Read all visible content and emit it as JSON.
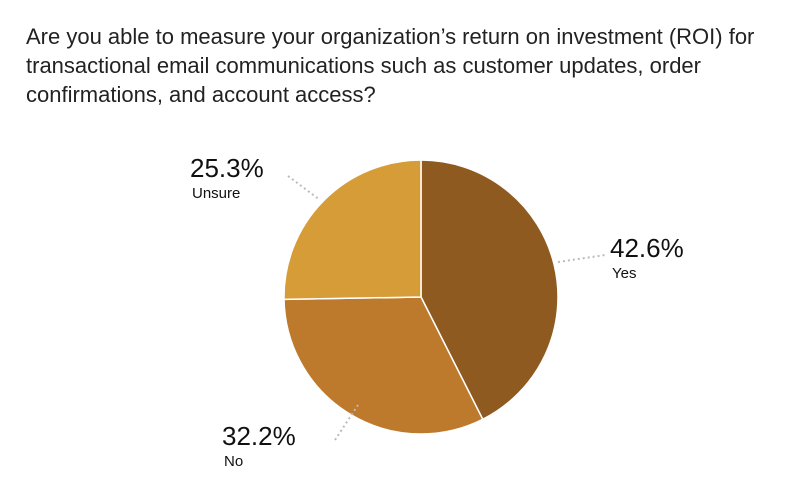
{
  "chart_data": {
    "type": "pie",
    "title": "Are you able to measure your organization’s return on investment (ROI) for transactional email communications such as customer updates, order confirmations, and account access?",
    "categories": [
      "Yes",
      "No",
      "Unsure"
    ],
    "values": [
      42.6,
      32.2,
      25.3
    ],
    "value_labels": [
      "42.6%",
      "32.2%",
      "25.3%"
    ],
    "colors": [
      "#8f5a1f",
      "#be7a2c",
      "#d69c37"
    ]
  }
}
